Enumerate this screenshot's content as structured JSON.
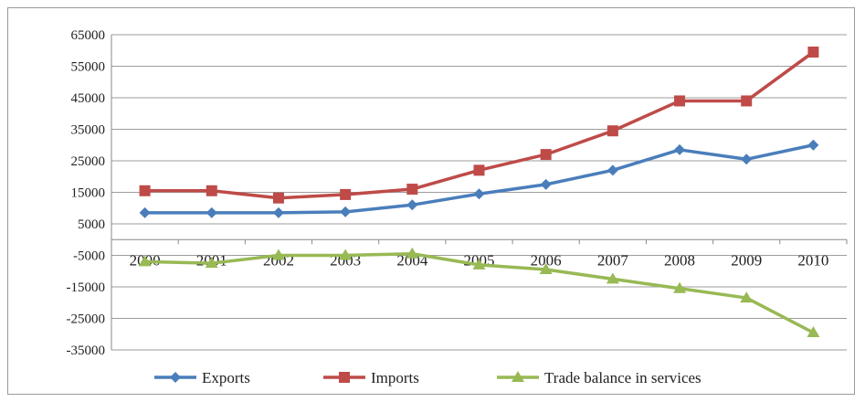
{
  "chart_data": {
    "type": "line",
    "title": "",
    "xlabel": "",
    "ylabel": "",
    "categories": [
      "2000",
      "2001",
      "2002",
      "2003",
      "2004",
      "2005",
      "2006",
      "2007",
      "2008",
      "2009",
      "2010"
    ],
    "ylim": [
      -35000,
      65000
    ],
    "yticks": [
      65000,
      55000,
      45000,
      35000,
      25000,
      15000,
      5000,
      -5000,
      -15000,
      -25000,
      -35000
    ],
    "grid": true,
    "legend_position": "bottom",
    "series": [
      {
        "name": "Exports",
        "color": "#4a7ebb",
        "marker": "diamond",
        "values": [
          8500,
          8500,
          8500,
          8800,
          11000,
          14500,
          17500,
          22000,
          28500,
          25500,
          30000
        ]
      },
      {
        "name": "Imports",
        "color": "#be4b48",
        "marker": "square",
        "values": [
          15500,
          15500,
          13200,
          14300,
          16000,
          22000,
          27000,
          34500,
          44000,
          44000,
          59500
        ]
      },
      {
        "name": "Trade balance in services",
        "color": "#98b954",
        "marker": "triangle",
        "values": [
          -7000,
          -7500,
          -5000,
          -5000,
          -4500,
          -8000,
          -9500,
          -12500,
          -15500,
          -18500,
          -29500
        ]
      }
    ]
  }
}
